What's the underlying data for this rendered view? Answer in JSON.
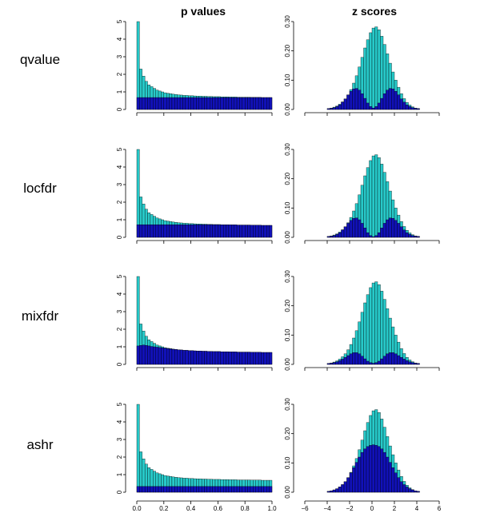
{
  "figure": {
    "column_titles": [
      "p values",
      "z scores"
    ],
    "colors": {
      "total": "#27c9c9",
      "null": "#1111b8",
      "outline": "#000000"
    }
  },
  "chart_data": [
    {
      "type": "bar",
      "method": "qvalue",
      "panel": "p values",
      "x": [
        0.0,
        0.02,
        0.04,
        0.06,
        0.08,
        0.1,
        0.12,
        0.14,
        0.16,
        0.18,
        0.2,
        0.22,
        0.24,
        0.26,
        0.28,
        0.3,
        0.32,
        0.34,
        0.36,
        0.38,
        0.4,
        0.42,
        0.44,
        0.46,
        0.48,
        0.5,
        0.52,
        0.54,
        0.56,
        0.58,
        0.6,
        0.62,
        0.64,
        0.66,
        0.68,
        0.7,
        0.72,
        0.74,
        0.76,
        0.78,
        0.8,
        0.82,
        0.84,
        0.86,
        0.88,
        0.9,
        0.92,
        0.94,
        0.96,
        0.98
      ],
      "series": [
        {
          "values": [
            5.0,
            2.3,
            1.9,
            1.6,
            1.4,
            1.3,
            1.2,
            1.1,
            1.05,
            1.0,
            0.95,
            0.92,
            0.9,
            0.87,
            0.85,
            0.83,
            0.82,
            0.8,
            0.8,
            0.78,
            0.78,
            0.77,
            0.76,
            0.76,
            0.75,
            0.75,
            0.74,
            0.74,
            0.73,
            0.73,
            0.73,
            0.72,
            0.72,
            0.72,
            0.71,
            0.71,
            0.71,
            0.7,
            0.7,
            0.7,
            0.7,
            0.7,
            0.69,
            0.69,
            0.69,
            0.69,
            0.68,
            0.68,
            0.68,
            0.68
          ]
        },
        {
          "values": [
            0.68,
            0.68,
            0.68,
            0.68,
            0.68,
            0.68,
            0.68,
            0.68,
            0.68,
            0.68,
            0.68,
            0.68,
            0.68,
            0.68,
            0.68,
            0.68,
            0.68,
            0.68,
            0.68,
            0.68,
            0.68,
            0.68,
            0.68,
            0.68,
            0.68,
            0.68,
            0.68,
            0.68,
            0.68,
            0.68,
            0.68,
            0.68,
            0.68,
            0.68,
            0.68,
            0.68,
            0.68,
            0.68,
            0.68,
            0.68,
            0.68,
            0.68,
            0.68,
            0.68,
            0.68,
            0.68,
            0.68,
            0.68,
            0.68,
            0.68
          ]
        }
      ],
      "ylim": [
        0,
        5
      ]
    },
    {
      "type": "bar",
      "method": "qvalue",
      "panel": "z scores",
      "x": [
        -4.0,
        -3.75,
        -3.5,
        -3.25,
        -3.0,
        -2.75,
        -2.5,
        -2.25,
        -2.0,
        -1.75,
        -1.5,
        -1.25,
        -1.0,
        -0.75,
        -0.5,
        -0.25,
        0.0,
        0.25,
        0.5,
        0.75,
        1.0,
        1.25,
        1.5,
        1.75,
        2.0,
        2.25,
        2.5,
        2.75,
        3.0,
        3.25,
        3.5,
        3.75,
        4.0
      ],
      "series": [
        {
          "values": [
            0.003,
            0.005,
            0.008,
            0.012,
            0.018,
            0.026,
            0.036,
            0.05,
            0.068,
            0.09,
            0.115,
            0.145,
            0.178,
            0.21,
            0.238,
            0.262,
            0.278,
            0.282,
            0.272,
            0.25,
            0.222,
            0.19,
            0.158,
            0.128,
            0.1,
            0.076,
            0.054,
            0.037,
            0.024,
            0.015,
            0.009,
            0.005,
            0.003
          ]
        },
        {
          "values": [
            0.003,
            0.004,
            0.006,
            0.01,
            0.016,
            0.025,
            0.036,
            0.05,
            0.062,
            0.07,
            0.072,
            0.066,
            0.054,
            0.038,
            0.022,
            0.01,
            0.005,
            0.01,
            0.022,
            0.038,
            0.054,
            0.066,
            0.072,
            0.07,
            0.062,
            0.05,
            0.036,
            0.025,
            0.016,
            0.01,
            0.006,
            0.004,
            0.003
          ]
        }
      ],
      "ylim": [
        0,
        0.3
      ]
    },
    {
      "type": "bar",
      "method": "locfdr",
      "panel": "p values",
      "x": [
        0.0,
        0.02,
        0.04,
        0.06,
        0.08,
        0.1,
        0.12,
        0.14,
        0.16,
        0.18,
        0.2,
        0.22,
        0.24,
        0.26,
        0.28,
        0.3,
        0.32,
        0.34,
        0.36,
        0.38,
        0.4,
        0.42,
        0.44,
        0.46,
        0.48,
        0.5,
        0.52,
        0.54,
        0.56,
        0.58,
        0.6,
        0.62,
        0.64,
        0.66,
        0.68,
        0.7,
        0.72,
        0.74,
        0.76,
        0.78,
        0.8,
        0.82,
        0.84,
        0.86,
        0.88,
        0.9,
        0.92,
        0.94,
        0.96,
        0.98
      ],
      "series": [
        {
          "values": [
            5.0,
            2.3,
            1.9,
            1.6,
            1.4,
            1.3,
            1.2,
            1.1,
            1.05,
            1.0,
            0.95,
            0.92,
            0.9,
            0.87,
            0.85,
            0.83,
            0.82,
            0.8,
            0.8,
            0.78,
            0.78,
            0.77,
            0.76,
            0.76,
            0.75,
            0.75,
            0.74,
            0.74,
            0.73,
            0.73,
            0.73,
            0.72,
            0.72,
            0.72,
            0.71,
            0.71,
            0.71,
            0.7,
            0.7,
            0.7,
            0.7,
            0.7,
            0.69,
            0.69,
            0.69,
            0.69,
            0.68,
            0.68,
            0.68,
            0.68
          ]
        },
        {
          "values": [
            0.72,
            0.72,
            0.72,
            0.72,
            0.72,
            0.72,
            0.72,
            0.72,
            0.72,
            0.72,
            0.72,
            0.72,
            0.72,
            0.72,
            0.72,
            0.72,
            0.72,
            0.72,
            0.72,
            0.72,
            0.72,
            0.72,
            0.72,
            0.72,
            0.72,
            0.72,
            0.72,
            0.72,
            0.72,
            0.72,
            0.71,
            0.71,
            0.71,
            0.71,
            0.71,
            0.71,
            0.71,
            0.7,
            0.7,
            0.7,
            0.7,
            0.7,
            0.69,
            0.69,
            0.69,
            0.69,
            0.68,
            0.68,
            0.68,
            0.68
          ]
        }
      ],
      "ylim": [
        0,
        5
      ]
    },
    {
      "type": "bar",
      "method": "locfdr",
      "panel": "z scores",
      "x": [
        -4.0,
        -3.75,
        -3.5,
        -3.25,
        -3.0,
        -2.75,
        -2.5,
        -2.25,
        -2.0,
        -1.75,
        -1.5,
        -1.25,
        -1.0,
        -0.75,
        -0.5,
        -0.25,
        0.0,
        0.25,
        0.5,
        0.75,
        1.0,
        1.25,
        1.5,
        1.75,
        2.0,
        2.25,
        2.5,
        2.75,
        3.0,
        3.25,
        3.5,
        3.75,
        4.0
      ],
      "series": [
        {
          "values": [
            0.003,
            0.005,
            0.008,
            0.012,
            0.018,
            0.026,
            0.036,
            0.05,
            0.068,
            0.09,
            0.115,
            0.145,
            0.178,
            0.21,
            0.238,
            0.262,
            0.278,
            0.282,
            0.272,
            0.25,
            0.222,
            0.19,
            0.158,
            0.128,
            0.1,
            0.076,
            0.054,
            0.037,
            0.024,
            0.015,
            0.009,
            0.005,
            0.003
          ]
        },
        {
          "values": [
            0.003,
            0.004,
            0.006,
            0.01,
            0.016,
            0.025,
            0.036,
            0.048,
            0.058,
            0.065,
            0.066,
            0.06,
            0.048,
            0.032,
            0.016,
            0.006,
            0.002,
            0.006,
            0.016,
            0.032,
            0.048,
            0.06,
            0.066,
            0.065,
            0.058,
            0.048,
            0.036,
            0.025,
            0.016,
            0.01,
            0.006,
            0.004,
            0.003
          ]
        }
      ],
      "ylim": [
        0,
        0.3
      ]
    },
    {
      "type": "bar",
      "method": "mixfdr",
      "panel": "p values",
      "x": [
        0.0,
        0.02,
        0.04,
        0.06,
        0.08,
        0.1,
        0.12,
        0.14,
        0.16,
        0.18,
        0.2,
        0.22,
        0.24,
        0.26,
        0.28,
        0.3,
        0.32,
        0.34,
        0.36,
        0.38,
        0.4,
        0.42,
        0.44,
        0.46,
        0.48,
        0.5,
        0.52,
        0.54,
        0.56,
        0.58,
        0.6,
        0.62,
        0.64,
        0.66,
        0.68,
        0.7,
        0.72,
        0.74,
        0.76,
        0.78,
        0.8,
        0.82,
        0.84,
        0.86,
        0.88,
        0.9,
        0.92,
        0.94,
        0.96,
        0.98
      ],
      "series": [
        {
          "values": [
            5.0,
            2.3,
            1.9,
            1.6,
            1.4,
            1.3,
            1.2,
            1.1,
            1.05,
            1.0,
            0.95,
            0.92,
            0.9,
            0.87,
            0.85,
            0.83,
            0.82,
            0.8,
            0.8,
            0.78,
            0.78,
            0.77,
            0.76,
            0.76,
            0.75,
            0.75,
            0.74,
            0.74,
            0.73,
            0.73,
            0.73,
            0.72,
            0.72,
            0.72,
            0.71,
            0.71,
            0.71,
            0.7,
            0.7,
            0.7,
            0.7,
            0.7,
            0.69,
            0.69,
            0.69,
            0.69,
            0.68,
            0.68,
            0.68,
            0.68
          ]
        },
        {
          "values": [
            1.05,
            1.08,
            1.1,
            1.08,
            1.05,
            1.02,
            1.0,
            0.98,
            0.96,
            0.94,
            0.92,
            0.9,
            0.88,
            0.86,
            0.85,
            0.83,
            0.82,
            0.8,
            0.8,
            0.78,
            0.78,
            0.77,
            0.76,
            0.76,
            0.75,
            0.75,
            0.74,
            0.74,
            0.73,
            0.73,
            0.73,
            0.72,
            0.72,
            0.72,
            0.71,
            0.71,
            0.71,
            0.7,
            0.7,
            0.7,
            0.7,
            0.7,
            0.69,
            0.69,
            0.69,
            0.69,
            0.68,
            0.68,
            0.68,
            0.68
          ]
        }
      ],
      "ylim": [
        0,
        5
      ]
    },
    {
      "type": "bar",
      "method": "mixfdr",
      "panel": "z scores",
      "x": [
        -4.0,
        -3.75,
        -3.5,
        -3.25,
        -3.0,
        -2.75,
        -2.5,
        -2.25,
        -2.0,
        -1.75,
        -1.5,
        -1.25,
        -1.0,
        -0.75,
        -0.5,
        -0.25,
        0.0,
        0.25,
        0.5,
        0.75,
        1.0,
        1.25,
        1.5,
        1.75,
        2.0,
        2.25,
        2.5,
        2.75,
        3.0,
        3.25,
        3.5,
        3.75,
        4.0
      ],
      "series": [
        {
          "values": [
            0.003,
            0.005,
            0.008,
            0.012,
            0.018,
            0.026,
            0.036,
            0.05,
            0.068,
            0.09,
            0.115,
            0.145,
            0.178,
            0.21,
            0.238,
            0.262,
            0.278,
            0.282,
            0.272,
            0.25,
            0.222,
            0.19,
            0.158,
            0.128,
            0.1,
            0.076,
            0.054,
            0.037,
            0.024,
            0.015,
            0.009,
            0.005,
            0.003
          ]
        },
        {
          "values": [
            0.003,
            0.004,
            0.006,
            0.009,
            0.013,
            0.018,
            0.024,
            0.03,
            0.036,
            0.04,
            0.04,
            0.036,
            0.028,
            0.019,
            0.011,
            0.006,
            0.004,
            0.006,
            0.011,
            0.019,
            0.028,
            0.036,
            0.04,
            0.04,
            0.036,
            0.03,
            0.024,
            0.018,
            0.013,
            0.009,
            0.006,
            0.004,
            0.003
          ]
        }
      ],
      "ylim": [
        0,
        0.3
      ]
    },
    {
      "type": "bar",
      "method": "ashr",
      "panel": "p values",
      "x": [
        0.0,
        0.02,
        0.04,
        0.06,
        0.08,
        0.1,
        0.12,
        0.14,
        0.16,
        0.18,
        0.2,
        0.22,
        0.24,
        0.26,
        0.28,
        0.3,
        0.32,
        0.34,
        0.36,
        0.38,
        0.4,
        0.42,
        0.44,
        0.46,
        0.48,
        0.5,
        0.52,
        0.54,
        0.56,
        0.58,
        0.6,
        0.62,
        0.64,
        0.66,
        0.68,
        0.7,
        0.72,
        0.74,
        0.76,
        0.78,
        0.8,
        0.82,
        0.84,
        0.86,
        0.88,
        0.9,
        0.92,
        0.94,
        0.96,
        0.98
      ],
      "series": [
        {
          "values": [
            5.0,
            2.3,
            1.9,
            1.6,
            1.4,
            1.3,
            1.2,
            1.1,
            1.05,
            1.0,
            0.95,
            0.92,
            0.9,
            0.87,
            0.85,
            0.83,
            0.82,
            0.8,
            0.8,
            0.78,
            0.78,
            0.77,
            0.76,
            0.76,
            0.75,
            0.75,
            0.74,
            0.74,
            0.73,
            0.73,
            0.73,
            0.72,
            0.72,
            0.72,
            0.71,
            0.71,
            0.71,
            0.7,
            0.7,
            0.7,
            0.7,
            0.7,
            0.69,
            0.69,
            0.69,
            0.69,
            0.68,
            0.68,
            0.68,
            0.68
          ]
        },
        {
          "values": [
            0.33,
            0.33,
            0.33,
            0.33,
            0.33,
            0.33,
            0.33,
            0.33,
            0.33,
            0.33,
            0.33,
            0.33,
            0.33,
            0.33,
            0.33,
            0.33,
            0.33,
            0.33,
            0.33,
            0.33,
            0.33,
            0.33,
            0.33,
            0.33,
            0.33,
            0.33,
            0.33,
            0.33,
            0.33,
            0.33,
            0.33,
            0.33,
            0.33,
            0.33,
            0.33,
            0.33,
            0.33,
            0.33,
            0.33,
            0.33,
            0.33,
            0.33,
            0.33,
            0.33,
            0.33,
            0.33,
            0.33,
            0.33,
            0.33,
            0.33
          ]
        }
      ],
      "ylim": [
        0,
        5
      ]
    },
    {
      "type": "bar",
      "method": "ashr",
      "panel": "z scores",
      "x": [
        -4.0,
        -3.75,
        -3.5,
        -3.25,
        -3.0,
        -2.75,
        -2.5,
        -2.25,
        -2.0,
        -1.75,
        -1.5,
        -1.25,
        -1.0,
        -0.75,
        -0.5,
        -0.25,
        0.0,
        0.25,
        0.5,
        0.75,
        1.0,
        1.25,
        1.5,
        1.75,
        2.0,
        2.25,
        2.5,
        2.75,
        3.0,
        3.25,
        3.5,
        3.75,
        4.0
      ],
      "series": [
        {
          "values": [
            0.003,
            0.005,
            0.008,
            0.012,
            0.018,
            0.026,
            0.036,
            0.05,
            0.068,
            0.09,
            0.115,
            0.145,
            0.178,
            0.21,
            0.238,
            0.262,
            0.278,
            0.282,
            0.272,
            0.25,
            0.222,
            0.19,
            0.158,
            0.128,
            0.1,
            0.076,
            0.054,
            0.037,
            0.024,
            0.015,
            0.009,
            0.005,
            0.003
          ]
        },
        {
          "values": [
            0.003,
            0.005,
            0.008,
            0.012,
            0.018,
            0.026,
            0.036,
            0.05,
            0.066,
            0.084,
            0.102,
            0.12,
            0.136,
            0.148,
            0.156,
            0.16,
            0.162,
            0.16,
            0.156,
            0.148,
            0.136,
            0.12,
            0.102,
            0.084,
            0.066,
            0.05,
            0.036,
            0.026,
            0.018,
            0.012,
            0.008,
            0.005,
            0.003
          ]
        }
      ],
      "ylim": [
        0,
        0.3
      ]
    }
  ],
  "axes": {
    "p_yticks": [
      "0",
      "1",
      "2",
      "3",
      "4",
      "5"
    ],
    "z_yticks": [
      "0.00",
      "0.10",
      "0.20",
      "0.30"
    ],
    "p_xticks": [
      "0.0",
      "0.2",
      "0.4",
      "0.6",
      "0.8",
      "1.0"
    ],
    "z_xticks": [
      "−6",
      "−4",
      "−2",
      "0",
      "2",
      "4",
      "6"
    ]
  }
}
